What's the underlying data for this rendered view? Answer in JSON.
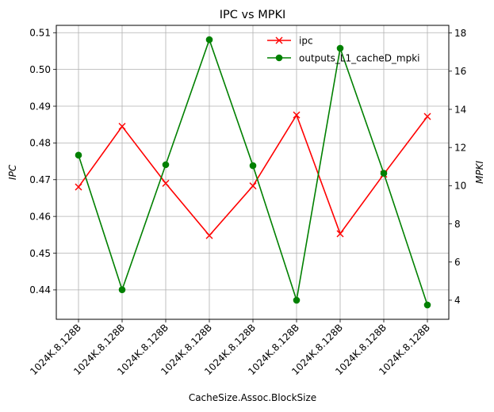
{
  "chart_data": {
    "type": "line",
    "title": "IPC vs MPKI",
    "xlabel": "CacheSize.Assoc.BlockSize",
    "ylabel_left": "IPC",
    "ylabel_right": "MPKI",
    "categories": [
      "1024K.8.128B",
      "1024K.8.128B",
      "1024K.8.128B",
      "1024K.8.128B",
      "1024K.8.128B",
      "1024K.8.128B",
      "1024K.8.128B",
      "1024K.8.128B",
      "1024K.8.128B"
    ],
    "ylim_left": [
      0.432,
      0.512
    ],
    "ylim_right": [
      3.0,
      18.4
    ],
    "yticks_left": [
      0.44,
      0.45,
      0.46,
      0.47,
      0.48,
      0.49,
      0.5,
      0.51
    ],
    "yticks_right": [
      4,
      6,
      8,
      10,
      12,
      14,
      16,
      18
    ],
    "grid": true,
    "legend_position": "top-right",
    "series": [
      {
        "name": "ipc",
        "axis": "left",
        "color": "#ff0000",
        "marker": "x",
        "values": [
          0.468,
          0.4845,
          0.469,
          0.4548,
          0.4683,
          0.4876,
          0.4553,
          0.4715,
          0.4872
        ]
      },
      {
        "name": "outputs_L1_cacheD_mpki",
        "axis": "right",
        "color": "#008000",
        "marker": "circle",
        "values": [
          11.6,
          4.55,
          11.1,
          17.65,
          11.05,
          4.0,
          17.2,
          10.65,
          3.75
        ]
      }
    ]
  }
}
